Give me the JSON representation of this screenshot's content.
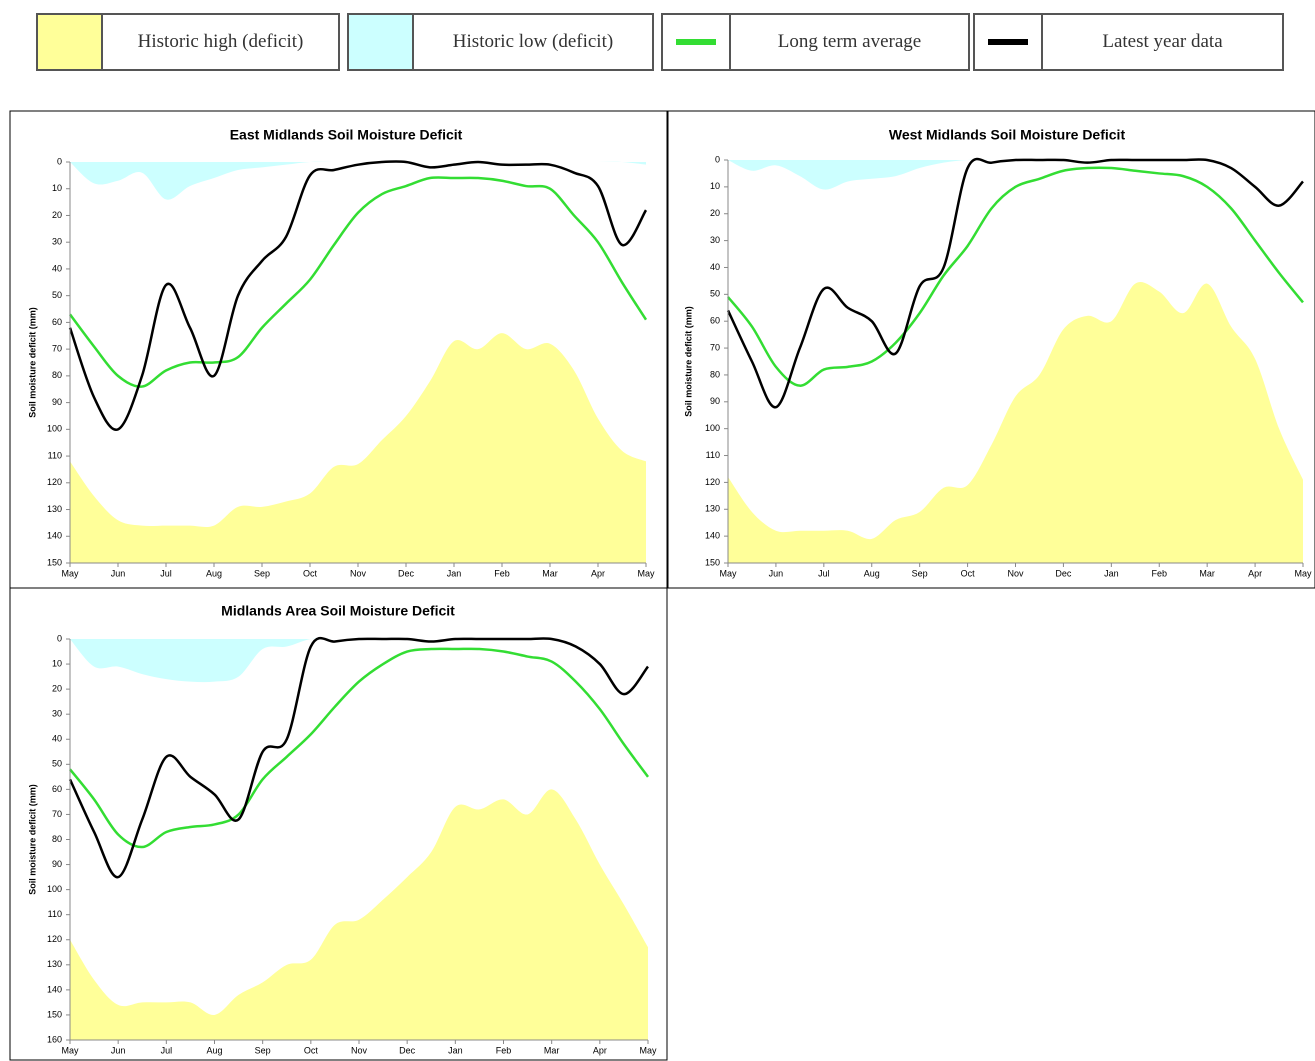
{
  "chart_data": [
    {
      "type": "line",
      "title": "East Midlands Soil Moisture Deficit",
      "y_label": "Soil moisture deficit (mm)",
      "categories": [
        "May",
        null,
        "Jun",
        null,
        "Jul",
        null,
        "Aug",
        null,
        "Sep",
        null,
        "Oct",
        null,
        "Nov",
        null,
        "Dec",
        null,
        "Jan",
        null,
        "Feb",
        null,
        "Mar",
        null,
        "Apr",
        null,
        "May"
      ],
      "ylim": [
        0,
        150
      ],
      "y_inverted": true,
      "yticks": [
        0,
        10,
        20,
        30,
        40,
        50,
        60,
        70,
        80,
        90,
        100,
        110,
        120,
        130,
        140,
        150
      ],
      "series": [
        {
          "name": "Historic high (deficit)",
          "color": "#ffff99",
          "fill": "bottom",
          "values": [
            112,
            125,
            134,
            136,
            136,
            136,
            136,
            129,
            129,
            127,
            124,
            114,
            113,
            104,
            95,
            82,
            67,
            70,
            64,
            70,
            68,
            78,
            96,
            108,
            112
          ]
        },
        {
          "name": "Historic low (deficit)",
          "color": "#ccffff",
          "fill": "top",
          "values": [
            0,
            8,
            7,
            4,
            14,
            9,
            6,
            3,
            2,
            1,
            0,
            0,
            0,
            0,
            0,
            0,
            0,
            0,
            0,
            0,
            0,
            0,
            0,
            0,
            1
          ]
        },
        {
          "name": "Long term average",
          "color": "#33dd33",
          "values": [
            57,
            69,
            80,
            84,
            78,
            75,
            75,
            73,
            62,
            53,
            44,
            31,
            19,
            12,
            9,
            6,
            6,
            6,
            7,
            9,
            10,
            20,
            30,
            45,
            59
          ]
        },
        {
          "name": "Latest year data",
          "color": "#000000",
          "values": [
            62,
            88,
            100,
            80,
            46,
            62,
            80,
            50,
            37,
            28,
            5,
            3,
            1,
            0,
            0,
            2,
            1,
            0,
            1,
            1,
            1,
            4,
            9,
            31,
            18
          ]
        }
      ]
    },
    {
      "type": "line",
      "title": "West Midlands Soil Moisture Deficit",
      "y_label": "Soil moisture deficit (mm)",
      "categories": [
        "May",
        null,
        "Jun",
        null,
        "Jul",
        null,
        "Aug",
        null,
        "Sep",
        null,
        "Oct",
        null,
        "Nov",
        null,
        "Dec",
        null,
        "Jan",
        null,
        "Feb",
        null,
        "Mar",
        null,
        "Apr",
        null,
        "May"
      ],
      "ylim": [
        0,
        150
      ],
      "y_inverted": true,
      "yticks": [
        0,
        10,
        20,
        30,
        40,
        50,
        60,
        70,
        80,
        90,
        100,
        110,
        120,
        130,
        140,
        150
      ],
      "series": [
        {
          "name": "Historic high (deficit)",
          "color": "#ffff99",
          "fill": "bottom",
          "values": [
            118,
            131,
            138,
            138,
            138,
            138,
            141,
            134,
            131,
            122,
            121,
            106,
            88,
            80,
            63,
            58,
            60,
            46,
            49,
            57,
            46,
            62,
            74,
            100,
            119
          ]
        },
        {
          "name": "Historic low (deficit)",
          "color": "#ccffff",
          "fill": "top",
          "values": [
            0,
            4,
            2,
            6,
            11,
            8,
            7,
            6,
            3,
            1,
            0,
            0,
            0,
            0,
            0,
            0,
            0,
            0,
            0,
            0,
            0,
            0,
            0,
            0,
            0
          ]
        },
        {
          "name": "Long term average",
          "color": "#33dd33",
          "values": [
            51,
            62,
            77,
            84,
            78,
            77,
            75,
            68,
            57,
            43,
            32,
            18,
            10,
            7,
            4,
            3,
            3,
            4,
            5,
            6,
            10,
            18,
            30,
            42,
            53
          ]
        },
        {
          "name": "Latest year data",
          "color": "#000000",
          "values": [
            56,
            75,
            92,
            70,
            48,
            55,
            60,
            72,
            47,
            40,
            3,
            1,
            0,
            0,
            0,
            1,
            0,
            0,
            0,
            0,
            0,
            3,
            10,
            17,
            8
          ]
        }
      ]
    },
    {
      "type": "line",
      "title": "Midlands Area Soil Moisture Deficit",
      "y_label": "Soil moisture deficit (mm)",
      "categories": [
        "May",
        null,
        "Jun",
        null,
        "Jul",
        null,
        "Aug",
        null,
        "Sep",
        null,
        "Oct",
        null,
        "Nov",
        null,
        "Dec",
        null,
        "Jan",
        null,
        "Feb",
        null,
        "Mar",
        null,
        "Apr",
        null,
        "May"
      ],
      "ylim": [
        0,
        160
      ],
      "y_inverted": true,
      "yticks": [
        0,
        10,
        20,
        30,
        40,
        50,
        60,
        70,
        80,
        90,
        100,
        110,
        120,
        130,
        140,
        150,
        160
      ],
      "series": [
        {
          "name": "Historic high (deficit)",
          "color": "#ffff99",
          "fill": "bottom",
          "values": [
            120,
            136,
            146,
            145,
            145,
            145,
            150,
            142,
            137,
            130,
            128,
            114,
            112,
            104,
            95,
            85,
            67,
            68,
            64,
            70,
            60,
            72,
            90,
            106,
            123
          ]
        },
        {
          "name": "Historic low (deficit)",
          "color": "#ccffff",
          "fill": "top",
          "values": [
            0,
            11,
            11,
            14,
            16,
            17,
            17,
            15,
            4,
            3,
            0,
            0,
            0,
            0,
            0,
            0,
            0,
            0,
            0,
            0,
            0,
            0,
            0,
            0,
            0
          ]
        },
        {
          "name": "Long term average",
          "color": "#33dd33",
          "values": [
            52,
            64,
            78,
            83,
            77,
            75,
            74,
            70,
            56,
            47,
            38,
            27,
            17,
            10,
            5,
            4,
            4,
            4,
            5,
            7,
            9,
            17,
            28,
            42,
            55
          ]
        },
        {
          "name": "Latest year data",
          "color": "#000000",
          "values": [
            56,
            77,
            95,
            72,
            47,
            55,
            62,
            72,
            45,
            40,
            3,
            1,
            0,
            0,
            0,
            1,
            0,
            0,
            0,
            0,
            0,
            3,
            10,
            22,
            11
          ]
        }
      ]
    }
  ]
}
